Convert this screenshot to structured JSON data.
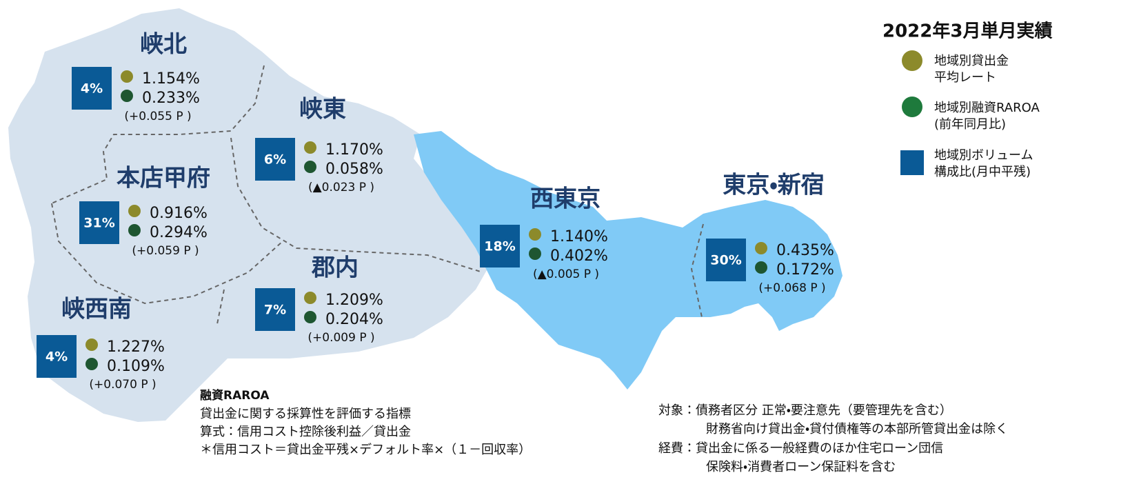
{
  "legend": {
    "title": "2022年3月単月実績",
    "items": [
      {
        "label": [
          "地域別貸出金",
          "平均レート"
        ]
      },
      {
        "label": [
          "地域別融資RAROA",
          "(前年同月比)"
        ]
      },
      {
        "label": [
          "地域別ボリューム",
          "構成比(月中平残)"
        ]
      }
    ]
  },
  "regions": [
    {
      "name": "峡北",
      "volume": "4%",
      "rate": "1.154%",
      "raroa": "0.233%",
      "change": "(+0.055 P )"
    },
    {
      "name": "峡東",
      "volume": "6%",
      "rate": "1.170%",
      "raroa": "0.058%",
      "change": "(▲0.023 P )"
    },
    {
      "name": "本店甲府",
      "volume": "31%",
      "rate": "0.916%",
      "raroa": "0.294%",
      "change": "(+0.059 P )"
    },
    {
      "name": "郡内",
      "volume": "7%",
      "rate": "1.209%",
      "raroa": "0.204%",
      "change": "(+0.009 P )"
    },
    {
      "name": "峡西南",
      "volume": "4%",
      "rate": "1.227%",
      "raroa": "0.109%",
      "change": "(+0.070 P )"
    },
    {
      "name": "西東京",
      "volume": "18%",
      "rate": "1.140%",
      "raroa": "0.402%",
      "change": "(▲0.005 P )"
    },
    {
      "name": "東京・新宿",
      "volume": "30%",
      "rate": "0.435%",
      "raroa": "0.172%",
      "change": "(+0.068 P )"
    }
  ],
  "notes_left": {
    "title": "融資RAROA",
    "lines": [
      "貸出金に関する採算性を評価する指標",
      "算式：信用コスト控除後利益／貸出金",
      "＊信用コスト＝貸出金平残×デフォルト率×（１－回収率）"
    ]
  },
  "notes_right": {
    "lines": [
      "対象：債務者区分 正常・要注意先（要管理先を含む）",
      "財務省向け貸出金・貸付債権等の本部所管貸出金は除く",
      "経費：貸出金に係る一般経費のほか住宅ローン団信",
      "保険料・消費者ローン保証料を含む"
    ]
  }
}
